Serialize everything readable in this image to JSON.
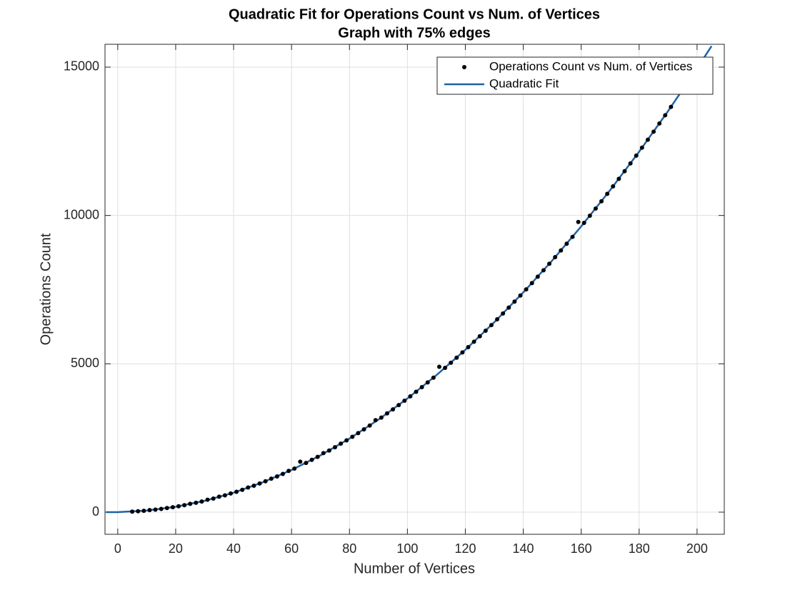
{
  "chart_data": {
    "type": "scatter",
    "title": "Quadratic Fit for Operations Count vs Num. of Vertices",
    "subtitle": "Graph with 75% edges",
    "x_label": "Number of Vertices",
    "y_label": "Operations Count",
    "xlim": [
      -4.4,
      209.4
    ],
    "ylim": [
      -746,
      15770
    ],
    "xticks": [
      0,
      20,
      40,
      60,
      80,
      100,
      120,
      140,
      160,
      180,
      200
    ],
    "yticks": [
      0,
      5000,
      10000,
      15000
    ],
    "grid": true,
    "legend": "northeast",
    "series": [
      {
        "name": "Operations Count vs Num. of Vertices",
        "mode": "markers",
        "color": "#000000",
        "x": [
          5,
          7,
          9,
          11,
          13,
          15,
          17,
          19,
          21,
          23,
          25,
          27,
          29,
          31,
          33,
          35,
          37,
          39,
          41,
          43,
          45,
          47,
          49,
          51,
          53,
          55,
          57,
          59,
          61,
          63,
          65,
          67,
          69,
          71,
          73,
          75,
          77,
          79,
          81,
          83,
          85,
          87,
          89,
          91,
          93,
          95,
          97,
          99,
          101,
          103,
          105,
          107,
          109,
          111,
          113,
          115,
          117,
          119,
          121,
          123,
          125,
          127,
          129,
          131,
          133,
          135,
          137,
          139,
          141,
          143,
          145,
          147,
          149,
          151,
          153,
          155,
          157,
          159,
          161,
          163,
          165,
          167,
          169,
          171,
          173,
          175,
          177,
          179,
          181,
          183,
          185,
          187,
          189,
          191
        ],
        "values": [
          18,
          30,
          46,
          70,
          85,
          109,
          140,
          166,
          199,
          234,
          280,
          315,
          359,
          420,
          457,
          520,
          566,
          630,
          687,
          752,
          830,
          891,
          965,
          1041,
          1130,
          1203,
          1289,
          1390,
          1468,
          1700,
          1659,
          1765,
          1862,
          1990,
          2077,
          2188,
          2310,
          2420,
          2541,
          2664,
          2790,
          2919,
          3100,
          3186,
          3330,
          3465,
          3609,
          3756,
          3905,
          4058,
          4213,
          4372,
          4533,
          4900,
          4864,
          5034,
          5207,
          5383,
          5562,
          5744,
          5928,
          6116,
          6306,
          6500,
          6696,
          6895,
          7097,
          7302,
          7510,
          7721,
          7935,
          8152,
          8372,
          8594,
          8820,
          9048,
          9280,
          9780,
          9751,
          9991,
          10234,
          10480,
          10729,
          10981,
          11236,
          11493,
          11754,
          12017,
          12284,
          12553,
          12825,
          13100,
          13378,
          13659
        ]
      },
      {
        "name": "Quadratic Fit",
        "mode": "line",
        "color": "#1f63a6",
        "x": [
          -4,
          0,
          10,
          20,
          30,
          40,
          50,
          60,
          70,
          80,
          90,
          100,
          110,
          120,
          130,
          140,
          150,
          160,
          170,
          180,
          190,
          200,
          205
        ],
        "values": [
          -1,
          0,
          55,
          182,
          383,
          656,
          1003,
          1422,
          1915,
          2480,
          3119,
          3830,
          4615,
          5472,
          6403,
          7406,
          8483,
          9632,
          10855,
          12150,
          13519,
          14960,
          15708
        ]
      }
    ]
  }
}
